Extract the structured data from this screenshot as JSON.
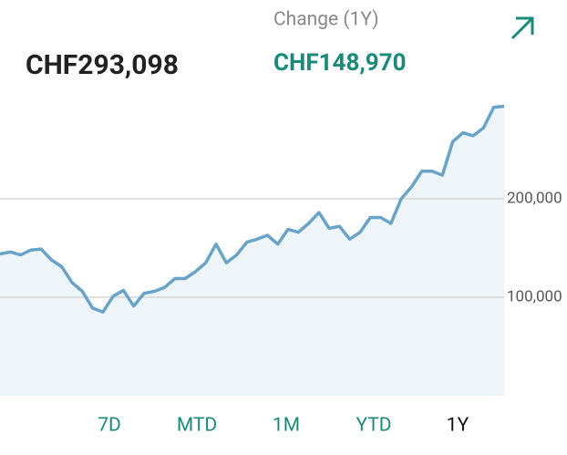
{
  "header": {
    "total": "CHF293,098",
    "change_label": "Change (1Y)",
    "change_value": "CHF148,970"
  },
  "chart_data": {
    "type": "line",
    "color": "#6aa3c8",
    "area_color": "#eef5f9",
    "values": [
      144000,
      146000,
      143000,
      148000,
      149000,
      138000,
      131000,
      115000,
      106000,
      89000,
      85000,
      101000,
      107000,
      91000,
      104000,
      106000,
      110000,
      119000,
      119000,
      126000,
      135000,
      154000,
      135000,
      143000,
      156000,
      159000,
      163000,
      154000,
      169000,
      166000,
      175000,
      186000,
      170000,
      172000,
      159000,
      166000,
      181000,
      181000,
      175000,
      200000,
      212000,
      228000,
      228000,
      224000,
      258000,
      267000,
      264000,
      272000,
      293000,
      294000
    ],
    "ylim": [
      0,
      300000
    ],
    "yticks": [
      {
        "value": 100000,
        "label": "100,000"
      },
      {
        "value": 200000,
        "label": "200,000"
      }
    ],
    "grid": true
  },
  "tabs": [
    "7D",
    "MTD",
    "1M",
    "YTD",
    "1Y"
  ]
}
